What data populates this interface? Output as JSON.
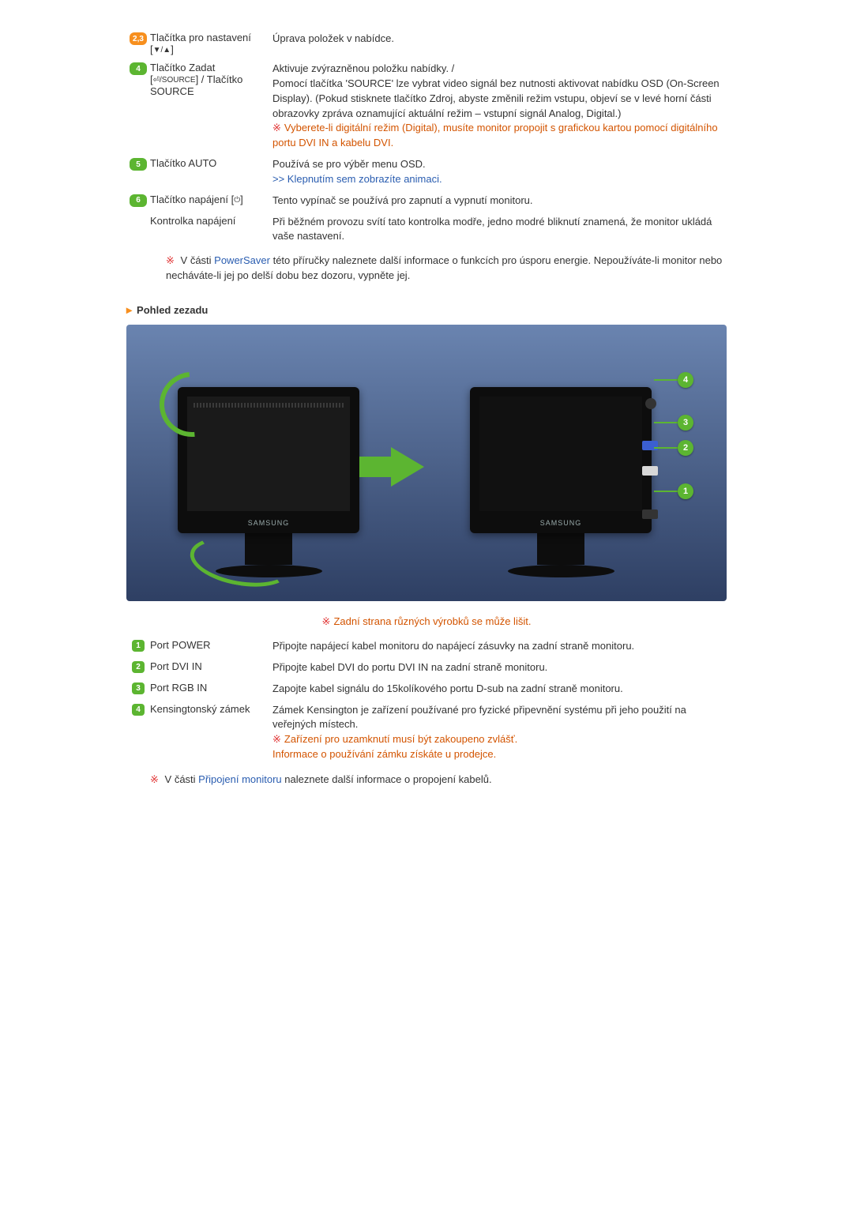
{
  "rows_top": [
    {
      "badge_text": "2,3",
      "badge_color": "orange",
      "label_parts": [
        "Tlačítka pro nastavení [",
        "▼/▲",
        "]"
      ],
      "desc": [
        {
          "t": "Úprava položek v nabídce."
        }
      ]
    },
    {
      "badge_text": "4",
      "badge_color": "green",
      "label_parts": [
        "Tlačítko Zadat [",
        "⏎/SOURCE",
        "] / Tlačítko SOURCE"
      ],
      "desc": [
        {
          "t": "Aktivuje zvýrazněnou položku nabídky. /"
        },
        {
          "t": "Pomocí tlačítka 'SOURCE' lze vybrat video signál bez nutnosti aktivovat nabídku OSD (On-Screen Display). (Pokud stisknete tlačítko Zdroj, abyste změnili režim vstupu, objeví se v levé horní části obrazovky zpráva oznamující aktuální režim – vstupní signál Analog, Digital.)"
        },
        {
          "mark": true,
          "class": "red",
          "t": "Vyberete-li digitální režim (Digital), musíte monitor propojit s grafickou kartou pomocí digitálního portu DVI IN a kabelu DVI."
        }
      ]
    },
    {
      "badge_text": "5",
      "badge_color": "green",
      "label_parts": [
        "Tlačítko AUTO"
      ],
      "desc": [
        {
          "t": "Používá se pro výběr menu OSD."
        },
        {
          "class": "blue",
          "t": ">> Klepnutím sem zobrazíte animaci."
        }
      ]
    },
    {
      "badge_text": "6",
      "badge_color": "green",
      "label_parts": [
        "Tlačítko napájení [",
        "⏻",
        "]"
      ],
      "desc": [
        {
          "t": "Tento vypínač se používá pro zapnutí a vypnutí monitoru."
        }
      ]
    },
    {
      "badge_text": "",
      "badge_color": "",
      "label_parts": [
        "Kontrolka napájení"
      ],
      "desc": [
        {
          "t": "Při běžném provozu svítí tato kontrolka modře, jedno modré bliknutí znamená, že monitor ukládá vaše nastavení."
        }
      ]
    }
  ],
  "powersaver_note": {
    "prefix": "V části ",
    "link": "PowerSaver",
    "suffix": " této příručky naleznete další informace o funkcích pro úsporu energie. Nepoužíváte-li monitor nebo necháváte-li jej po delší dobu bez dozoru, vypněte jej."
  },
  "section_title": "Pohled zezadu",
  "brand": "SAMSUNG",
  "callouts": [
    "1",
    "2",
    "3",
    "4"
  ],
  "figure_note": "Zadní strana různých výrobků se může lišit.",
  "rows_bottom": [
    {
      "n": "1",
      "label": "Port POWER",
      "desc": [
        {
          "t": "Připojte napájecí kabel monitoru do napájecí zásuvky na zadní straně monitoru."
        }
      ]
    },
    {
      "n": "2",
      "label": "Port DVI IN",
      "desc": [
        {
          "t": "Připojte kabel DVI do portu DVI IN na zadní straně monitoru."
        }
      ]
    },
    {
      "n": "3",
      "label": "Port RGB IN",
      "desc": [
        {
          "t": "Zapojte kabel signálu do 15kolíkového portu D-sub na zadní straně monitoru."
        }
      ]
    },
    {
      "n": "4",
      "label": "Kensingtonský zámek",
      "desc": [
        {
          "t": "Zámek Kensington je zařízení používané pro fyzické připevnění systému při jeho použití na veřejných místech."
        },
        {
          "mark": true,
          "class": "red",
          "t": "Zařízení pro uzamknutí musí být zakoupeno zvlášť."
        },
        {
          "class": "red",
          "t": "Informace o používání zámku získáte u prodejce."
        }
      ]
    }
  ],
  "footer_note": {
    "prefix": "V části ",
    "link": "Připojení monitoru",
    "suffix": " naleznete další informace o propojení kabelů."
  },
  "colors": {
    "orange": "#f78f1e",
    "green": "#5cb531",
    "red": "#d35400",
    "blue": "#2a5db0"
  }
}
